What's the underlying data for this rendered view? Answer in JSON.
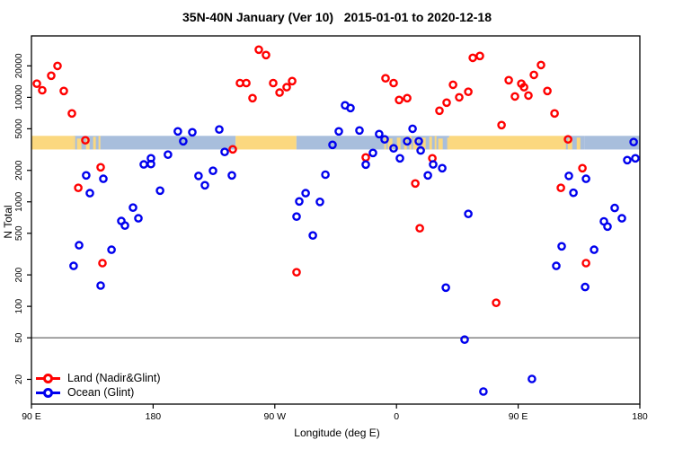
{
  "title": "35N-40N January (Ver 10)   2015-01-01 to 2020-12-18",
  "legend": {
    "items": [
      {
        "label": "Land (Nadir&Glint)",
        "color": "#ff0000"
      },
      {
        "label": "Ocean (Glint)",
        "color": "#0000ee"
      }
    ]
  },
  "chart_data": {
    "type": "scatter",
    "title": "35N-40N January (Ver 10)   2015-01-01 to 2020-12-18",
    "xlabel": "Longitude (deg E)",
    "ylabel": "N Total",
    "grid": false,
    "legend_position": "bottom-left-inside",
    "x_axis": {
      "note": "longitude axis spans 450 deg eastward starting at 90E",
      "range": [
        0,
        450
      ],
      "ticks": [
        {
          "t": 0,
          "label": "90 E"
        },
        {
          "t": 90,
          "label": "180"
        },
        {
          "t": 180,
          "label": "90 W"
        },
        {
          "t": 270,
          "label": "0"
        },
        {
          "t": 360,
          "label": "90 E"
        },
        {
          "t": 450,
          "label": "180"
        }
      ]
    },
    "y_axis": {
      "scale": "log",
      "lim": [
        11.6,
        38700
      ],
      "ticks": [
        20,
        50,
        100,
        200,
        500,
        1000,
        2000,
        5000,
        10000,
        20000
      ]
    },
    "reference_line_y": 50,
    "surface_band": {
      "value_range": [
        3170,
        4280
      ],
      "colors": {
        "land": "#fbd87f",
        "ocean": "#a8bedc"
      },
      "segments": [
        {
          "from": 0,
          "to": 31,
          "type": "land"
        },
        {
          "from": 31,
          "to": 51,
          "type": "mix"
        },
        {
          "from": 51,
          "to": 151,
          "type": "ocean"
        },
        {
          "from": 151,
          "to": 196,
          "type": "land"
        },
        {
          "from": 196,
          "to": 261,
          "type": "ocean"
        },
        {
          "from": 261,
          "to": 309,
          "type": "mix"
        },
        {
          "from": 309,
          "to": 394,
          "type": "land"
        },
        {
          "from": 394,
          "to": 409,
          "type": "mix"
        },
        {
          "from": 409,
          "to": 450,
          "type": "ocean"
        }
      ]
    },
    "series": [
      {
        "name": "Land (Nadir&Glint)",
        "color": "#ff0000",
        "points": [
          [
            19.3,
            20000
          ],
          [
            14.6,
            16100
          ],
          [
            4.0,
            13500
          ],
          [
            8.0,
            11700
          ],
          [
            23.9,
            11500
          ],
          [
            29.9,
            7020
          ],
          [
            39.9,
            3880
          ],
          [
            168.2,
            28600
          ],
          [
            173.5,
            25400
          ],
          [
            154.2,
            13700
          ],
          [
            158.9,
            13700
          ],
          [
            163.5,
            9820
          ],
          [
            178.8,
            13700
          ],
          [
            183.5,
            11100
          ],
          [
            188.8,
            12500
          ],
          [
            192.8,
            14300
          ],
          [
            148.9,
            3180
          ],
          [
            261.9,
            15200
          ],
          [
            267.9,
            13700
          ],
          [
            271.9,
            9440
          ],
          [
            277.9,
            9820
          ],
          [
            311.8,
            13200
          ],
          [
            316.4,
            10000
          ],
          [
            323.1,
            11300
          ],
          [
            301.8,
            7440
          ],
          [
            307.1,
            8890
          ],
          [
            326.4,
            23900
          ],
          [
            331.7,
            24900
          ],
          [
            247.3,
            2660
          ],
          [
            296.5,
            2610
          ],
          [
            376.9,
            20400
          ],
          [
            371.6,
            16400
          ],
          [
            353.0,
            14600
          ],
          [
            362.3,
            13500
          ],
          [
            364.3,
            12500
          ],
          [
            357.6,
            10200
          ],
          [
            367.6,
            10400
          ],
          [
            381.6,
            11500
          ],
          [
            386.9,
            7020
          ],
          [
            347.7,
            5430
          ],
          [
            396.9,
            3960
          ],
          [
            283.9,
            1500
          ],
          [
            287.2,
            559
          ],
          [
            407.5,
            2100
          ],
          [
            391.6,
            1360
          ],
          [
            410.2,
            259
          ],
          [
            196.1,
            212
          ],
          [
            343.7,
            108
          ],
          [
            51.2,
            2140
          ],
          [
            34.6,
            1360
          ],
          [
            52.5,
            259
          ]
        ]
      },
      {
        "name": "Ocean (Glint)",
        "color": "#0000ee",
        "points": [
          [
            108.3,
            4720
          ],
          [
            112.3,
            3800
          ],
          [
            101.0,
            2830
          ],
          [
            88.4,
            2610
          ],
          [
            119.0,
            4630
          ],
          [
            138.9,
            4920
          ],
          [
            142.9,
            3000
          ],
          [
            222.7,
            3510
          ],
          [
            232.0,
            8380
          ],
          [
            236.0,
            7900
          ],
          [
            227.3,
            4720
          ],
          [
            242.6,
            4820
          ],
          [
            257.2,
            4450
          ],
          [
            261.2,
            3960
          ],
          [
            267.9,
            3250
          ],
          [
            277.9,
            3800
          ],
          [
            281.9,
            5000
          ],
          [
            286.5,
            3800
          ],
          [
            287.9,
            3100
          ],
          [
            252.6,
            2940
          ],
          [
            272.5,
            2610
          ],
          [
            446.7,
            2610
          ],
          [
            440.7,
            2510
          ],
          [
            445.4,
            3730
          ],
          [
            40.5,
            1790
          ],
          [
            53.2,
            1660
          ],
          [
            43.2,
            1210
          ],
          [
            95.1,
            1280
          ],
          [
            75.1,
            881
          ],
          [
            66.5,
            655
          ],
          [
            69.1,
            593
          ],
          [
            79.1,
            695
          ],
          [
            35.2,
            384
          ],
          [
            59.2,
            348
          ],
          [
            31.2,
            244
          ],
          [
            51.2,
            158
          ],
          [
            83.1,
            2280
          ],
          [
            88.4,
            2300
          ],
          [
            123.6,
            1770
          ],
          [
            134.3,
            1980
          ],
          [
            128.3,
            1440
          ],
          [
            148.2,
            1790
          ],
          [
            217.4,
            1820
          ],
          [
            202.8,
            1210
          ],
          [
            198.1,
            1010
          ],
          [
            213.4,
            1000
          ],
          [
            196.1,
            723
          ],
          [
            208.1,
            477
          ],
          [
            247.3,
            2270
          ],
          [
            297.1,
            2280
          ],
          [
            303.8,
            2100
          ],
          [
            293.2,
            1790
          ],
          [
            323.1,
            767
          ],
          [
            306.5,
            151
          ],
          [
            397.5,
            1770
          ],
          [
            410.2,
            1660
          ],
          [
            400.9,
            1220
          ],
          [
            431.4,
            873
          ],
          [
            423.4,
            650
          ],
          [
            426.1,
            580
          ],
          [
            436.7,
            695
          ],
          [
            392.2,
            375
          ],
          [
            416.2,
            348
          ],
          [
            388.2,
            244
          ],
          [
            409.5,
            153
          ],
          [
            320.4,
            48
          ],
          [
            370.2,
            20.2
          ],
          [
            334.3,
            15.3
          ]
        ]
      }
    ]
  }
}
